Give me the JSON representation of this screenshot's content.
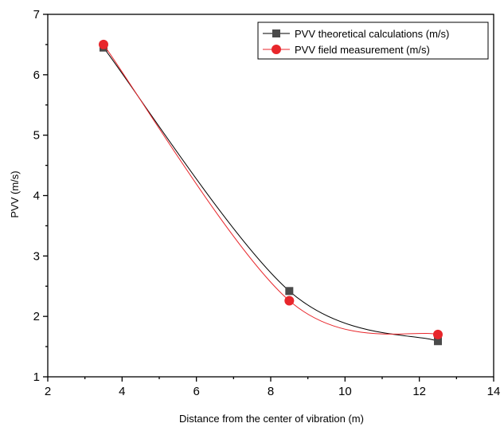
{
  "chart_data": {
    "type": "line",
    "xlabel": "Distance from the center of vibration (m)",
    "ylabel": "PVV (m/s)",
    "xlim": [
      2,
      14
    ],
    "ylim": [
      1,
      7
    ],
    "x_ticks": [
      2,
      4,
      6,
      8,
      10,
      12,
      14
    ],
    "y_ticks": [
      1,
      2,
      3,
      4,
      5,
      6,
      7
    ],
    "grid": false,
    "legend_position": "top-right",
    "smooth": true,
    "series": [
      {
        "name": "PVV theoretical calculations (m/s)",
        "marker": "square",
        "color": "#000000",
        "marker_color": "#4a4a4a",
        "x": [
          3.5,
          8.5,
          12.5
        ],
        "y": [
          6.45,
          2.42,
          1.59
        ]
      },
      {
        "name": "PVV field measurement (m/s)",
        "marker": "circle",
        "color": "#e8262b",
        "marker_color": "#e8262b",
        "x": [
          3.5,
          8.5,
          12.5
        ],
        "y": [
          6.5,
          2.26,
          1.7
        ]
      }
    ]
  }
}
